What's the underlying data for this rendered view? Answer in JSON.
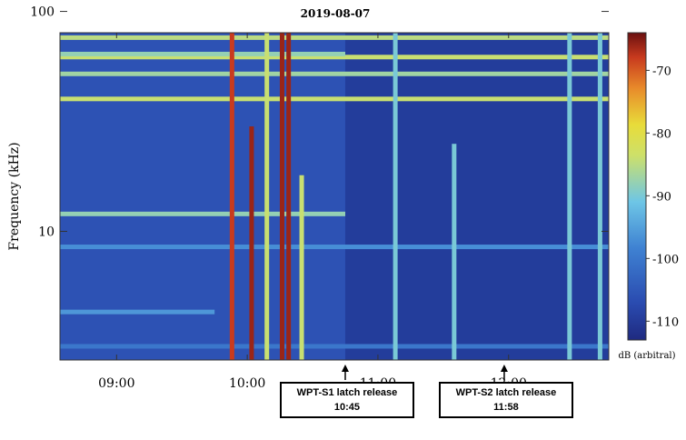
{
  "chart_data": {
    "type": "heatmap",
    "title": "2019-08-07",
    "ylabel": "Frequency (kHz)",
    "colorbar_label": "dB (arbitral)",
    "x_range": [
      "08:34",
      "12:46"
    ],
    "x_ticks": [
      "09:00",
      "10:00",
      "11:00",
      "12:00"
    ],
    "y_scale": "log",
    "y_range_khz": [
      2.6,
      80
    ],
    "y_ticks": [
      "10",
      "100"
    ],
    "color_range_db": [
      -113,
      -64
    ],
    "colorbar_ticks": [
      "-70",
      "-80",
      "-90",
      "-100",
      "-110"
    ],
    "colormap": "jet",
    "background_db": -106,
    "grid": false,
    "constant_lines": [
      {
        "freq_khz": 76,
        "db": -85,
        "until": "12:46"
      },
      {
        "freq_khz": 62,
        "db": -84,
        "until": "12:46"
      },
      {
        "freq_khz": 52,
        "db": -87,
        "until": "12:46"
      },
      {
        "freq_khz": 40,
        "db": -84,
        "until": "12:46"
      },
      {
        "freq_khz": 88,
        "db": -84,
        "until": "12:46"
      },
      {
        "freq_khz": 64,
        "db": -88,
        "until": "10:45"
      },
      {
        "freq_khz": 12,
        "db": -88,
        "until": "10:45"
      },
      {
        "freq_khz": 8.5,
        "db": -97,
        "until": "12:46"
      },
      {
        "freq_khz": 4.3,
        "db": -96,
        "until": "09:45"
      },
      {
        "freq_khz": 3.0,
        "db": -100,
        "until": "12:46"
      }
    ],
    "vertical_bursts": [
      {
        "time": "09:53",
        "db": -68,
        "fmin_khz": 2.6,
        "fmax_khz": 80
      },
      {
        "time": "10:02",
        "db": -66,
        "fmin_khz": 2.6,
        "fmax_khz": 30
      },
      {
        "time": "10:09",
        "db": -84,
        "fmin_khz": 2.6,
        "fmax_khz": 80
      },
      {
        "time": "10:16",
        "db": -66,
        "fmin_khz": 2.6,
        "fmax_khz": 80
      },
      {
        "time": "10:19",
        "db": -66,
        "fmin_khz": 2.6,
        "fmax_khz": 80
      },
      {
        "time": "10:25",
        "db": -84,
        "fmin_khz": 2.6,
        "fmax_khz": 18
      },
      {
        "time": "11:08",
        "db": -90,
        "fmin_khz": 2.6,
        "fmax_khz": 80
      },
      {
        "time": "11:35",
        "db": -90,
        "fmin_khz": 2.6,
        "fmax_khz": 25
      },
      {
        "time": "12:28",
        "db": -90,
        "fmin_khz": 2.6,
        "fmax_khz": 80
      },
      {
        "time": "12:42",
        "db": -90,
        "fmin_khz": 2.6,
        "fmax_khz": 80
      }
    ],
    "annotations": [
      {
        "time": "10:45",
        "label": "WPT-S1 latch release",
        "time_label": "10:45"
      },
      {
        "time": "11:58",
        "label": "WPT-S2 latch release",
        "time_label": "11:58"
      }
    ]
  }
}
